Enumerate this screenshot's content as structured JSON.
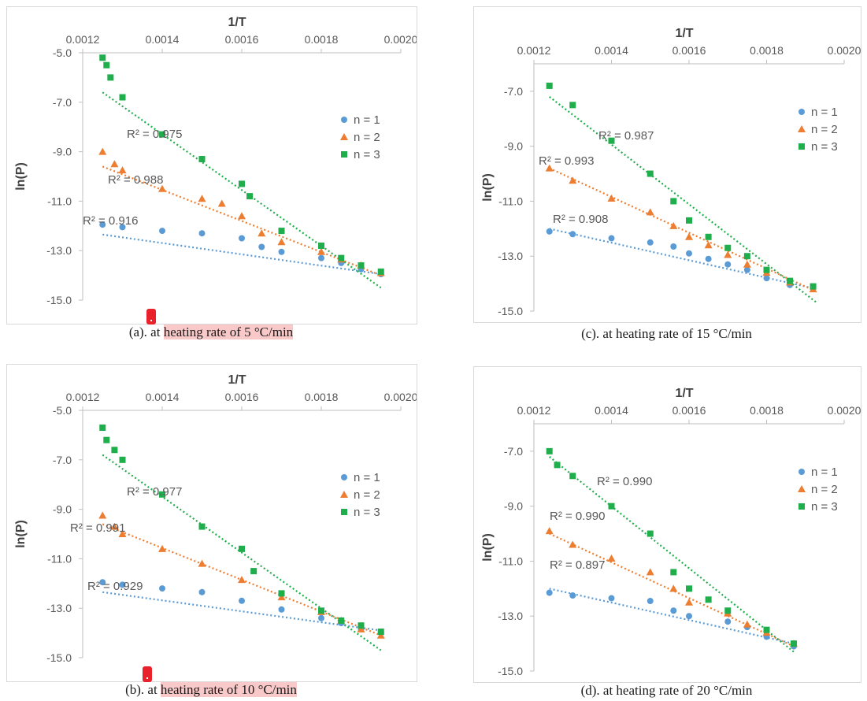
{
  "panels": [
    {
      "id": "a",
      "caption_prefix": "(a). at ",
      "caption_highlight": "heating rate of 5 °C/min",
      "highlighted": true
    },
    {
      "id": "b",
      "caption_prefix": "(b). at ",
      "caption_highlight": "heating rate of 10 °C/min",
      "highlighted": true
    },
    {
      "id": "c",
      "caption_prefix": "(c). at ",
      "caption_highlight": "heating rate of 15 °C/min",
      "highlighted": false
    },
    {
      "id": "d",
      "caption_prefix": "(d). at ",
      "caption_highlight": "heating rate of 20 °C/min",
      "highlighted": false
    }
  ],
  "colors": {
    "n1": "#5b9bd5",
    "n2": "#ed7d31",
    "n3": "#1fae4b",
    "highlight": "#f9c9c9",
    "marker": "#e8212a"
  },
  "chart_data": [
    {
      "panel": "a",
      "type": "scatter",
      "xlabel": "1/T",
      "ylabel": "ln(P)",
      "xlim": [
        0.0012,
        0.002
      ],
      "ylim": [
        -15,
        -5
      ],
      "x_axis_position": "top",
      "xticks": [
        "0.0012",
        "0.0014",
        "0.0016",
        "0.0018",
        "0.0020"
      ],
      "yticks": [
        "-5.0",
        "-7.0",
        "-9.0",
        "-11.0",
        "-13.0",
        "-15.0"
      ],
      "legend_position": "right",
      "series": [
        {
          "name": "n = 1",
          "marker": "circle",
          "r2": "R² = 0.916",
          "trend": [
            [
              0.00125,
              -12.35
            ],
            [
              0.00195,
              -13.95
            ]
          ],
          "points": [
            [
              0.00125,
              -11.95
            ],
            [
              0.0013,
              -12.05
            ],
            [
              0.0014,
              -12.2
            ],
            [
              0.0015,
              -12.3
            ],
            [
              0.0016,
              -12.5
            ],
            [
              0.00165,
              -12.85
            ],
            [
              0.0017,
              -13.05
            ],
            [
              0.0018,
              -13.3
            ],
            [
              0.00185,
              -13.5
            ],
            [
              0.0019,
              -13.75
            ],
            [
              0.00195,
              -13.95
            ]
          ]
        },
        {
          "name": "n = 2",
          "marker": "triangle",
          "r2": "R² = 0.988",
          "trend": [
            [
              0.00125,
              -9.6
            ],
            [
              0.00195,
              -14.0
            ]
          ],
          "points": [
            [
              0.00125,
              -9.0
            ],
            [
              0.00128,
              -9.5
            ],
            [
              0.0013,
              -9.75
            ],
            [
              0.0014,
              -10.5
            ],
            [
              0.0015,
              -10.9
            ],
            [
              0.00155,
              -11.1
            ],
            [
              0.0016,
              -11.6
            ],
            [
              0.00165,
              -12.3
            ],
            [
              0.0017,
              -12.65
            ],
            [
              0.0018,
              -13.05
            ],
            [
              0.00185,
              -13.35
            ],
            [
              0.0019,
              -13.6
            ],
            [
              0.00195,
              -13.9
            ]
          ]
        },
        {
          "name": "n = 3",
          "marker": "square",
          "r2": "R² = 0.975",
          "trend": [
            [
              0.00125,
              -6.6
            ],
            [
              0.00195,
              -14.5
            ]
          ],
          "points": [
            [
              0.00125,
              -5.2
            ],
            [
              0.00126,
              -5.5
            ],
            [
              0.00127,
              -6.0
            ],
            [
              0.0013,
              -6.8
            ],
            [
              0.0014,
              -8.3
            ],
            [
              0.0015,
              -9.3
            ],
            [
              0.0016,
              -10.3
            ],
            [
              0.00162,
              -10.8
            ],
            [
              0.0017,
              -12.2
            ],
            [
              0.0018,
              -12.8
            ],
            [
              0.00185,
              -13.3
            ],
            [
              0.0019,
              -13.6
            ],
            [
              0.00195,
              -13.85
            ]
          ]
        }
      ]
    },
    {
      "panel": "b",
      "type": "scatter",
      "xlabel": "1/T",
      "ylabel": "ln(P)",
      "xlim": [
        0.0012,
        0.002
      ],
      "ylim": [
        -15,
        -5
      ],
      "x_axis_position": "top",
      "xticks": [
        "0.0012",
        "0.0014",
        "0.0016",
        "0.0018",
        "0.0020"
      ],
      "yticks": [
        "-5.0",
        "-7.0",
        "-9.0",
        "-11.0",
        "-13.0",
        "-15.0"
      ],
      "legend_position": "right",
      "series": [
        {
          "name": "n = 1",
          "marker": "circle",
          "r2": "R² = 0.929",
          "trend": [
            [
              0.00125,
              -12.35
            ],
            [
              0.00195,
              -13.9
            ]
          ],
          "points": [
            [
              0.00125,
              -11.95
            ],
            [
              0.0013,
              -12.05
            ],
            [
              0.0014,
              -12.2
            ],
            [
              0.0015,
              -12.35
            ],
            [
              0.0016,
              -12.7
            ],
            [
              0.0017,
              -13.05
            ],
            [
              0.0018,
              -13.4
            ],
            [
              0.00185,
              -13.6
            ],
            [
              0.0019,
              -13.85
            ],
            [
              0.00195,
              -14.0
            ]
          ]
        },
        {
          "name": "n = 2",
          "marker": "triangle",
          "r2": "R² = 0.991",
          "trend": [
            [
              0.00125,
              -9.6
            ],
            [
              0.00195,
              -14.1
            ]
          ],
          "points": [
            [
              0.00125,
              -9.25
            ],
            [
              0.00128,
              -9.7
            ],
            [
              0.0013,
              -10.0
            ],
            [
              0.0014,
              -10.6
            ],
            [
              0.0015,
              -11.2
            ],
            [
              0.0016,
              -11.85
            ],
            [
              0.0017,
              -12.55
            ],
            [
              0.0018,
              -13.15
            ],
            [
              0.00185,
              -13.5
            ],
            [
              0.0019,
              -13.85
            ],
            [
              0.00195,
              -14.1
            ]
          ]
        },
        {
          "name": "n = 3",
          "marker": "square",
          "r2": "R² = 0.977",
          "trend": [
            [
              0.00125,
              -6.8
            ],
            [
              0.00195,
              -14.7
            ]
          ],
          "points": [
            [
              0.00125,
              -5.7
            ],
            [
              0.00126,
              -6.2
            ],
            [
              0.00128,
              -6.6
            ],
            [
              0.0013,
              -7.0
            ],
            [
              0.0014,
              -8.4
            ],
            [
              0.0015,
              -9.7
            ],
            [
              0.0016,
              -10.6
            ],
            [
              0.00163,
              -11.5
            ],
            [
              0.0017,
              -12.4
            ],
            [
              0.0018,
              -13.1
            ],
            [
              0.00185,
              -13.5
            ],
            [
              0.0019,
              -13.7
            ],
            [
              0.00195,
              -13.95
            ]
          ]
        }
      ]
    },
    {
      "panel": "c",
      "type": "scatter",
      "xlabel": "1/T",
      "ylabel": "ln(P)",
      "xlim": [
        0.0012,
        0.002
      ],
      "ylim": [
        -15,
        -6
      ],
      "x_axis_position": "top",
      "xticks": [
        "0.0012",
        "0.0014",
        "0.0016",
        "0.0018",
        "0.0020"
      ],
      "yticks": [
        "-7.0",
        "-9.0",
        "-11.0",
        "-13.0",
        "-15.0"
      ],
      "legend_position": "right",
      "series": [
        {
          "name": "n = 1",
          "marker": "circle",
          "r2": "R² = 0.908",
          "trend": [
            [
              0.00124,
              -12.0
            ],
            [
              0.00193,
              -14.2
            ]
          ],
          "points": [
            [
              0.00124,
              -12.1
            ],
            [
              0.0013,
              -12.2
            ],
            [
              0.0014,
              -12.35
            ],
            [
              0.0015,
              -12.5
            ],
            [
              0.00156,
              -12.65
            ],
            [
              0.0016,
              -12.9
            ],
            [
              0.00165,
              -13.1
            ],
            [
              0.0017,
              -13.3
            ],
            [
              0.00175,
              -13.5
            ],
            [
              0.0018,
              -13.8
            ],
            [
              0.00186,
              -14.05
            ]
          ]
        },
        {
          "name": "n = 2",
          "marker": "triangle",
          "r2": "R² = 0.993",
          "trend": [
            [
              0.00124,
              -9.8
            ],
            [
              0.00193,
              -14.3
            ]
          ],
          "points": [
            [
              0.00124,
              -9.8
            ],
            [
              0.0013,
              -10.25
            ],
            [
              0.0014,
              -10.9
            ],
            [
              0.0015,
              -11.4
            ],
            [
              0.00156,
              -11.9
            ],
            [
              0.0016,
              -12.3
            ],
            [
              0.00165,
              -12.6
            ],
            [
              0.0017,
              -12.95
            ],
            [
              0.00175,
              -13.3
            ],
            [
              0.0018,
              -13.6
            ],
            [
              0.00186,
              -13.95
            ],
            [
              0.00192,
              -14.2
            ]
          ]
        },
        {
          "name": "n = 3",
          "marker": "square",
          "r2": "R² = 0.987",
          "trend": [
            [
              0.00124,
              -7.2
            ],
            [
              0.00193,
              -14.7
            ]
          ],
          "points": [
            [
              0.00124,
              -6.8
            ],
            [
              0.0013,
              -7.5
            ],
            [
              0.0014,
              -8.8
            ],
            [
              0.0015,
              -10.0
            ],
            [
              0.00156,
              -11.0
            ],
            [
              0.0016,
              -11.7
            ],
            [
              0.00165,
              -12.3
            ],
            [
              0.0017,
              -12.7
            ],
            [
              0.00175,
              -13.0
            ],
            [
              0.0018,
              -13.5
            ],
            [
              0.00186,
              -13.9
            ],
            [
              0.00192,
              -14.1
            ]
          ]
        }
      ]
    },
    {
      "panel": "d",
      "type": "scatter",
      "xlabel": "1/T",
      "ylabel": "ln(P)",
      "xlim": [
        0.0012,
        0.002
      ],
      "ylim": [
        -15,
        -6
      ],
      "x_axis_position": "top",
      "xticks": [
        "0.0012",
        "0.0014",
        "0.0016",
        "0.0018",
        "0.0020"
      ],
      "yticks": [
        "-7.0",
        "-9.0",
        "-11.0",
        "-13.0",
        "-15.0"
      ],
      "legend_position": "right",
      "series": [
        {
          "name": "n = 1",
          "marker": "circle",
          "r2": "R² = 0.897",
          "trend": [
            [
              0.00124,
              -12.0
            ],
            [
              0.00187,
              -14.0
            ]
          ],
          "points": [
            [
              0.00124,
              -12.15
            ],
            [
              0.0013,
              -12.25
            ],
            [
              0.0014,
              -12.35
            ],
            [
              0.0015,
              -12.45
            ],
            [
              0.00156,
              -12.8
            ],
            [
              0.0016,
              -13.0
            ],
            [
              0.0017,
              -13.2
            ],
            [
              0.00175,
              -13.4
            ],
            [
              0.0018,
              -13.75
            ],
            [
              0.00187,
              -14.1
            ]
          ]
        },
        {
          "name": "n = 2",
          "marker": "triangle",
          "r2": "R² = 0.990",
          "trend": [
            [
              0.00124,
              -10.0
            ],
            [
              0.00187,
              -14.1
            ]
          ],
          "points": [
            [
              0.00124,
              -9.9
            ],
            [
              0.0013,
              -10.4
            ],
            [
              0.0014,
              -10.9
            ],
            [
              0.0015,
              -11.4
            ],
            [
              0.00156,
              -12.0
            ],
            [
              0.0016,
              -12.5
            ],
            [
              0.0017,
              -12.9
            ],
            [
              0.00175,
              -13.3
            ],
            [
              0.0018,
              -13.6
            ],
            [
              0.00187,
              -14.0
            ]
          ]
        },
        {
          "name": "n = 3",
          "marker": "square",
          "r2": "R² = 0.990",
          "trend": [
            [
              0.00124,
              -7.2
            ],
            [
              0.00187,
              -14.3
            ]
          ],
          "points": [
            [
              0.00124,
              -7.0
            ],
            [
              0.00126,
              -7.5
            ],
            [
              0.0013,
              -7.9
            ],
            [
              0.0014,
              -9.0
            ],
            [
              0.0015,
              -10.0
            ],
            [
              0.00156,
              -11.4
            ],
            [
              0.0016,
              -12.0
            ],
            [
              0.00165,
              -12.4
            ],
            [
              0.0017,
              -12.8
            ],
            [
              0.0018,
              -13.5
            ],
            [
              0.00187,
              -14.0
            ]
          ]
        }
      ]
    }
  ]
}
